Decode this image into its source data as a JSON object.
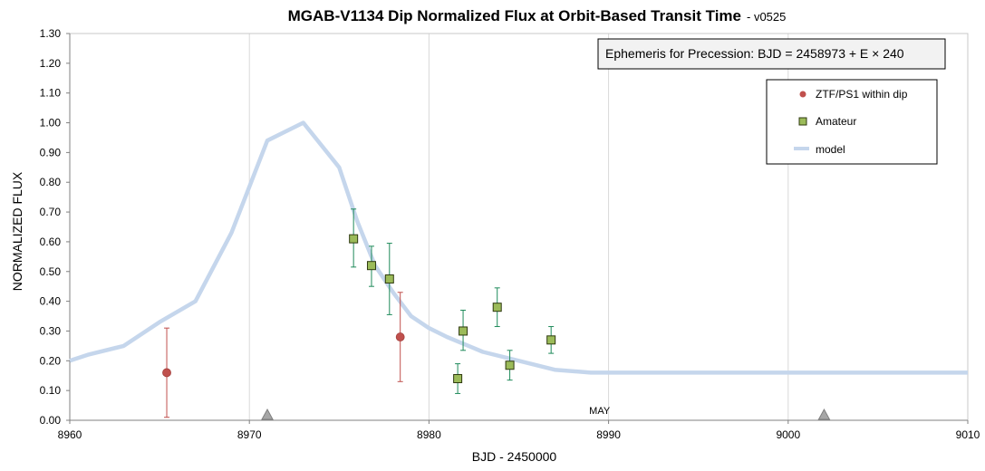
{
  "chart_data": {
    "type": "scatter",
    "title": "MGAB-V1134 Dip Normalized Flux at Orbit-Based Transit Time",
    "subtitle": "- v0525",
    "xlabel": "BJD - 2450000",
    "ylabel": "NORMALIZED FLUX",
    "xlim": [
      8960,
      9010
    ],
    "ylim": [
      0.0,
      1.3
    ],
    "x_ticks": [
      "8960",
      "8970",
      "8980",
      "8990",
      "9000",
      "9010"
    ],
    "y_ticks": [
      "0.00",
      "0.10",
      "0.20",
      "0.30",
      "0.40",
      "0.50",
      "0.60",
      "0.70",
      "0.80",
      "0.90",
      "1.00",
      "1.10",
      "1.20",
      "1.30"
    ],
    "grid": "vertical",
    "legend_position": "top-right",
    "annotation": "Ephemeris for Precession:  BJD = 2458973 + E × 240",
    "month_label": {
      "text": "MAY",
      "x": 8989.5
    },
    "transit_markers_x": [
      8971,
      9002
    ],
    "colors": {
      "ztf": "#c0504d",
      "amateur_fill": "#9bbb59",
      "amateur_edge": "#2f3a10",
      "amateur_errbar": "#1e8a5a",
      "model": "#c5d6ec",
      "marker": "#a6a6a6"
    },
    "series": [
      {
        "name": "ZTF/PS1 within dip",
        "kind": "scatter",
        "marker": "circle",
        "points": [
          {
            "x": 8965.4,
            "y": 0.16,
            "lo": 0.01,
            "hi": 0.31
          },
          {
            "x": 8978.4,
            "y": 0.28,
            "lo": 0.13,
            "hi": 0.43
          }
        ]
      },
      {
        "name": "Amateur",
        "kind": "scatter",
        "marker": "square",
        "points": [
          {
            "x": 8975.8,
            "y": 0.61,
            "lo": 0.515,
            "hi": 0.71
          },
          {
            "x": 8976.8,
            "y": 0.52,
            "lo": 0.45,
            "hi": 0.585
          },
          {
            "x": 8977.8,
            "y": 0.475,
            "lo": 0.355,
            "hi": 0.595
          },
          {
            "x": 8981.6,
            "y": 0.14,
            "lo": 0.09,
            "hi": 0.19
          },
          {
            "x": 8981.9,
            "y": 0.3,
            "lo": 0.235,
            "hi": 0.37
          },
          {
            "x": 8983.8,
            "y": 0.38,
            "lo": 0.315,
            "hi": 0.445
          },
          {
            "x": 8984.5,
            "y": 0.185,
            "lo": 0.135,
            "hi": 0.235
          },
          {
            "x": 8986.8,
            "y": 0.27,
            "lo": 0.225,
            "hi": 0.315
          }
        ]
      },
      {
        "name": "model",
        "kind": "line",
        "x": [
          8960,
          8961,
          8963,
          8965,
          8967,
          8969,
          8971,
          8973,
          8975,
          8976,
          8977,
          8978,
          8979,
          8980,
          8981,
          8982,
          8983,
          8985,
          8987,
          8989,
          8991,
          9000,
          9010
        ],
        "y": [
          0.2,
          0.22,
          0.25,
          0.33,
          0.4,
          0.63,
          0.94,
          1.0,
          0.85,
          0.67,
          0.52,
          0.43,
          0.35,
          0.31,
          0.28,
          0.255,
          0.23,
          0.2,
          0.17,
          0.16,
          0.16,
          0.16,
          0.16
        ]
      }
    ]
  }
}
